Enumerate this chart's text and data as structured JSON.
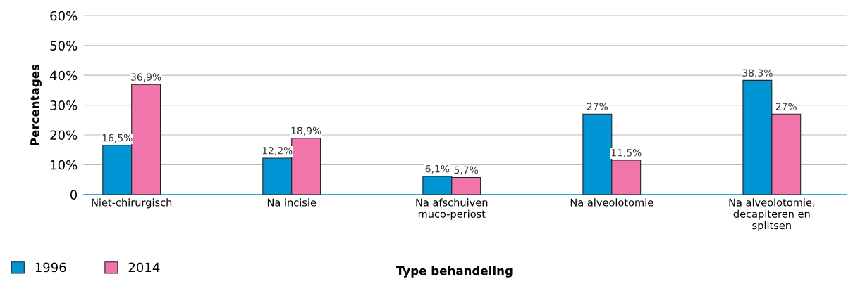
{
  "chart_data": {
    "type": "bar",
    "xlabel": "Type behandeling",
    "ylabel": "Percentages",
    "categories": [
      "Niet-chirurgisch",
      "Na incisie",
      "Na afschuiven\nmuco-periost",
      "Na alveolotomie",
      "Na alveolotomie,\ndecapiteren en\nsplitsen"
    ],
    "series": [
      {
        "name": "1996",
        "color": "#0096d6",
        "values": [
          16.5,
          12.2,
          6.1,
          27,
          38.3
        ],
        "value_labels": [
          "16,5%",
          "12,2%",
          "6,1%",
          "27%",
          "38,3%"
        ]
      },
      {
        "name": "2014",
        "color": "#f075aa",
        "values": [
          36.9,
          18.9,
          5.7,
          11.5,
          27
        ],
        "value_labels": [
          "36,9%",
          "18,9%",
          "5,7%",
          "11,5%",
          "27%"
        ]
      }
    ],
    "ylim": [
      0,
      60
    ],
    "yticks": [
      0,
      {
        "value": 10,
        "label": "10%"
      },
      {
        "value": 20,
        "label": "20%"
      },
      {
        "value": 30,
        "label": "30%"
      },
      {
        "value": 40,
        "label": "40%"
      },
      {
        "value": 50,
        "label": "50%"
      },
      {
        "value": 60,
        "label": "60%"
      }
    ],
    "grid": "y",
    "legend": "bottom left"
  }
}
